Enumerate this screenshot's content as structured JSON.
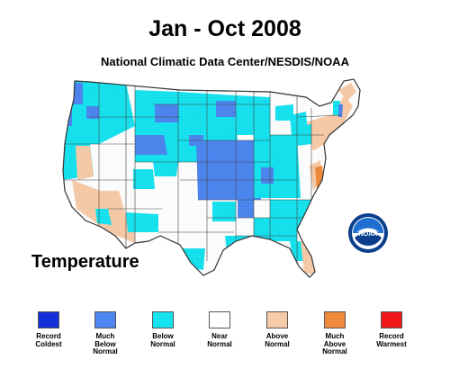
{
  "header": {
    "title": "Jan - Oct 2008",
    "subtitle": "National Climatic Data Center/NESDIS/NOAA"
  },
  "map": {
    "variable_label": "Temperature",
    "logo_text": "NOAA",
    "colors": {
      "record_coldest": "#1430d8",
      "much_below": "#4d86f0",
      "below": "#16e3f0",
      "near": "#ffffff",
      "above": "#f8cba8",
      "much_above": "#f08a3c",
      "record_warmest": "#f01818",
      "border": "#444444"
    }
  },
  "legend": {
    "items": [
      {
        "label": "Record\nColdest",
        "color": "#1430d8"
      },
      {
        "label": "Much\nBelow\nNormal",
        "color": "#4d86f0"
      },
      {
        "label": "Below\nNormal",
        "color": "#16e3f0"
      },
      {
        "label": "Near\nNormal",
        "color": "#ffffff"
      },
      {
        "label": "Above\nNormal",
        "color": "#f8cba8"
      },
      {
        "label": "Much\nAbove\nNormal",
        "color": "#f08a3c"
      },
      {
        "label": "Record\nWarmest",
        "color": "#f01818"
      }
    ]
  }
}
